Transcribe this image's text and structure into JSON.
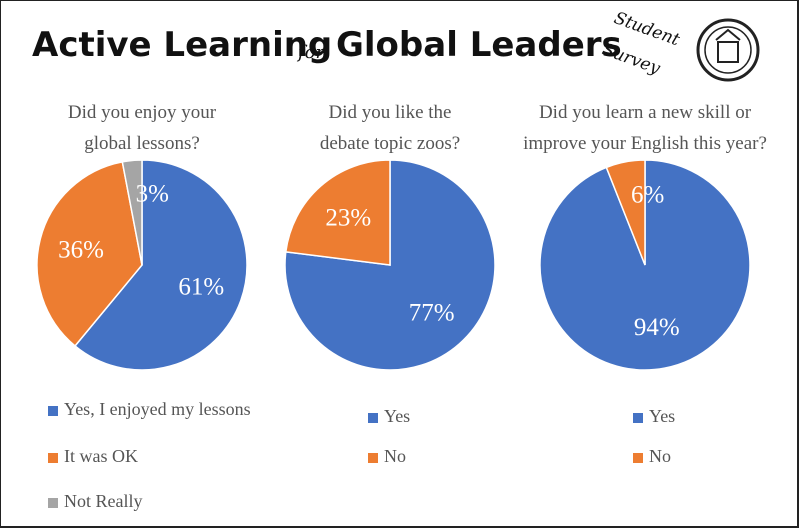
{
  "header": {
    "title": "Active Learning",
    "connector": "for",
    "title_end": "Global Leaders",
    "badge": [
      "Student",
      "Survey"
    ]
  },
  "chart_data": [
    {
      "type": "pie",
      "title": [
        "Did you enjoy your",
        "global lessons?"
      ],
      "categories": [
        "Yes, I enjoyed my lessons",
        "It was OK",
        "Not Really"
      ],
      "values": [
        61,
        36,
        3
      ],
      "value_labels": [
        "61%",
        "36%",
        "3%"
      ],
      "colors": [
        "#4472c4",
        "#ed7d31",
        "#a5a5a5"
      ]
    },
    {
      "type": "pie",
      "title": [
        "Did you like the",
        "debate topic zoos?"
      ],
      "categories": [
        "Yes",
        "No"
      ],
      "values": [
        77,
        23
      ],
      "value_labels": [
        "77%",
        "23%"
      ],
      "colors": [
        "#4472c4",
        "#ed7d31"
      ]
    },
    {
      "type": "pie",
      "title": [
        "Did you learn a new skill or",
        "improve your English this year?"
      ],
      "categories": [
        "Yes",
        "No"
      ],
      "values": [
        94,
        6
      ],
      "value_labels": [
        "94%",
        "6%"
      ],
      "colors": [
        "#4472c4",
        "#ed7d31"
      ]
    }
  ]
}
